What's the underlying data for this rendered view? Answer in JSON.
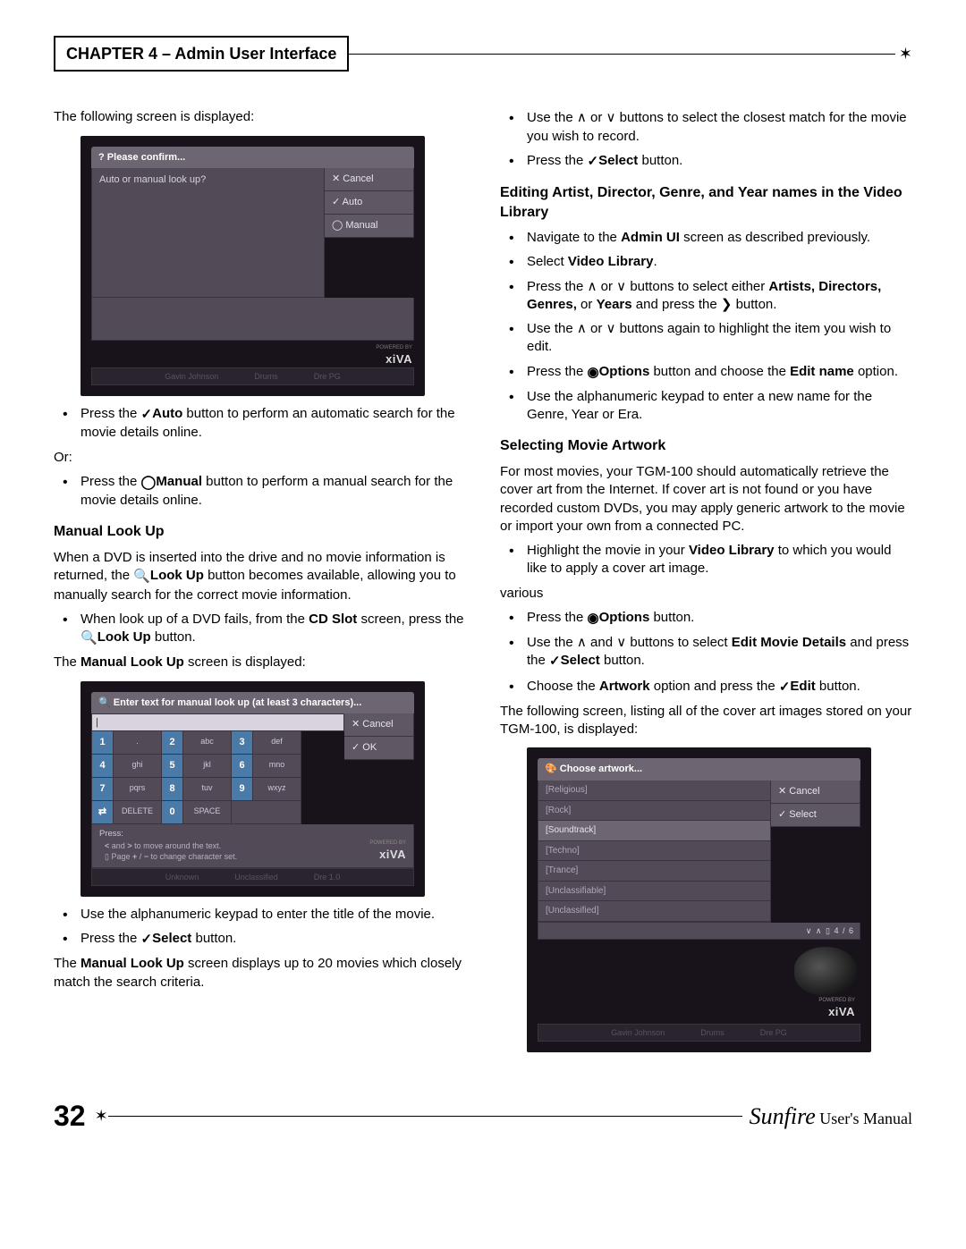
{
  "header": {
    "chapter": "CHAPTER 4 – Admin User Interface"
  },
  "col1": {
    "intro": "The following screen is displayed:",
    "shot1": {
      "title": "Please confirm...",
      "prompt": "Auto or manual look up?",
      "btn_cancel": "Cancel",
      "btn_auto": "Auto",
      "btn_manual": "Manual",
      "powered": "POWERED BY",
      "brand": "xiVA",
      "sb1": "Gavin Johnson",
      "sb2": "Drums",
      "sb3": "Dre PG"
    },
    "b1a": "Press the ",
    "b1b": "Auto",
    "b1c": " button to perform an automatic search for the movie details online.",
    "or": "Or:",
    "b2a": "Press the ",
    "b2b": "Manual",
    "b2c": " button to perform a manual search for the movie details online.",
    "h_manual": "Manual Look Up",
    "p_manual1a": "When a DVD is inserted into the drive and no movie information is returned, the ",
    "p_manual1b": "Look Up",
    "p_manual1c": " button becomes available, allowing you to manually search for the correct movie information.",
    "b3a": "When look up of a DVD fails, from the ",
    "b3b": "CD Slot",
    "b3c": " screen, press the ",
    "b3d": "Look Up",
    "b3e": " button.",
    "p_manual2a": "The ",
    "p_manual2b": "Manual Look Up",
    "p_manual2c": " screen is displayed:",
    "shot2": {
      "title": "Enter text for manual look up (at least 3 characters)...",
      "cursor": "|",
      "btn_cancel": "Cancel",
      "btn_ok": "OK",
      "keys": [
        [
          "1",
          ".",
          "2",
          "abc",
          "3",
          "def"
        ],
        [
          "4",
          "ghi",
          "5",
          "jkl",
          "6",
          "mno"
        ],
        [
          "7",
          "pqrs",
          "8",
          "tuv",
          "9",
          "wxyz"
        ],
        [
          "⇄",
          "DELETE",
          "0",
          "SPACE",
          "",
          ""
        ]
      ],
      "press": "Press:",
      "hint1": "< and > to move around the text.",
      "hint2": "Page + / − to change character set.",
      "powered": "POWERED BY",
      "brand": "xiVA",
      "sb1": "Unknown",
      "sb2": "Unclassified",
      "sb3": "Dre 1.0"
    },
    "b4": "Use the alphanumeric keypad to enter the title of the movie.",
    "b5a": "Press the ",
    "b5b": "Select",
    "b5c": " button.",
    "p_manual3a": "The ",
    "p_manual3b": "Manual Look Up",
    "p_manual3c": " screen displays up to 20 movies which closely match the search criteria."
  },
  "col2": {
    "b1": "Use the ∧ or ∨ buttons to select the closest match for the movie you wish to record.",
    "b2a": "Press the ",
    "b2b": "Select",
    "b2c": " button.",
    "h_edit": "Editing Artist, Director, Genre, and Year names in the Video Library",
    "b3a": "Navigate to the ",
    "b3b": "Admin UI",
    "b3c": " screen as described previously.",
    "b4a": "Select ",
    "b4b": "Video Library",
    "b4c": ".",
    "b5a": "Press the ∧ or ∨ buttons to select either ",
    "b5b": "Artists, Directors, Genres,",
    "b5c": " or ",
    "b5d": "Years",
    "b5e": " and press the ❯ button.",
    "b6": "Use the ∧ or ∨ buttons again to highlight the item you wish to edit.",
    "b7a": "Press the ",
    "b7b": "Options",
    "b7c": " button and choose the ",
    "b7d": "Edit name",
    "b7e": " option.",
    "b8": "Use the alphanumeric keypad to enter a new name for the Genre, Year or Era.",
    "h_art": "Selecting Movie Artwork",
    "p_art": "For most movies, your TGM-100 should automatically retrieve the cover art from the Internet. If cover art is not found or you have recorded custom DVDs, you may apply generic artwork to the movie or import your own from a connected PC.",
    "b9a": "Highlight the movie in your ",
    "b9b": "Video Library",
    "b9c": " to which you would like to apply a cover art image.",
    "b10a": "Press the ",
    "b10b": "Options",
    "b10c": " button.",
    "b11a": "Use the ∧ and ∨ buttons to select ",
    "b11b": "Edit Movie Details",
    "b11c": " and press the ",
    "b11d": "Select",
    "b11e": " button.",
    "b12a": "Choose the ",
    "b12b": "Artwork",
    "b12c": " option and press the ",
    "b12d": "Edit",
    "b12e": " button.",
    "p_art2": "The following screen, listing all of the cover art images stored on your TGM-100, is displayed:",
    "shot3": {
      "title": "Choose artwork...",
      "items": [
        "[Religious]",
        "[Rock]",
        "[Soundtrack]",
        "[Techno]",
        "[Trance]",
        "[Unclassifiable]",
        "[Unclassified]"
      ],
      "sel_index": 2,
      "btn_cancel": "Cancel",
      "btn_select": "Select",
      "nav": "∨ ∧ ▯ 4 / 6",
      "powered": "POWERED BY",
      "brand": "xiVA",
      "sb1": "Gavin Johnson",
      "sb2": "Drums",
      "sb3": "Dre PG"
    }
  },
  "footer": {
    "page": "32",
    "brand": "Sunfire",
    "label": " User's Manual"
  }
}
